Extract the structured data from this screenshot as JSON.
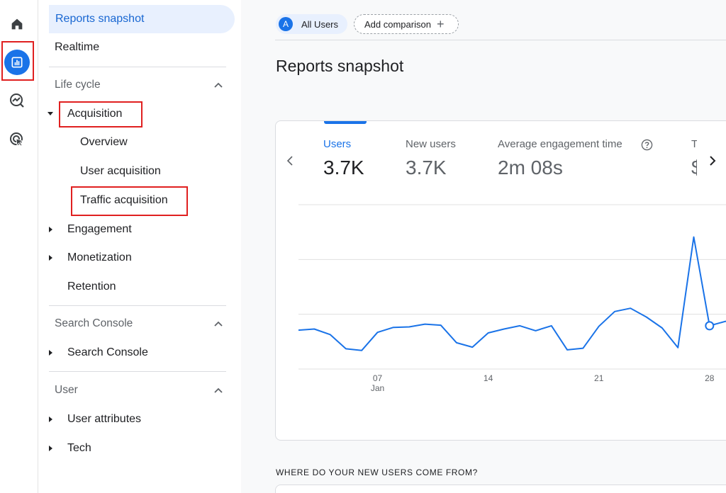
{
  "nav": {
    "selected": "Reports snapshot",
    "realtime": "Realtime",
    "sections": [
      {
        "title": "Life cycle",
        "items": [
          {
            "label": "Acquisition",
            "expanded": true,
            "children": [
              "Overview",
              "User acquisition",
              "Traffic acquisition"
            ]
          },
          {
            "label": "Engagement"
          },
          {
            "label": "Monetization"
          },
          {
            "label": "Retention"
          }
        ]
      },
      {
        "title": "Search Console",
        "items": [
          {
            "label": "Search Console"
          }
        ]
      },
      {
        "title": "User",
        "items": [
          {
            "label": "User attributes"
          },
          {
            "label": "Tech"
          }
        ]
      }
    ]
  },
  "main": {
    "chips": {
      "all_users_avatar": "A",
      "all_users": "All Users",
      "add_comparison": "Add comparison"
    },
    "page_title": "Reports snapshot",
    "metrics": [
      {
        "label": "Users",
        "value": "3.7K"
      },
      {
        "label": "New users",
        "value": "3.7K"
      },
      {
        "label": "Average engagement time",
        "value": "2m 08s"
      },
      {
        "label": "T",
        "value": "$"
      }
    ],
    "section_caption": "WHERE DO YOUR NEW USERS COME FROM?"
  },
  "chart_data": {
    "type": "line",
    "series": [
      {
        "x": [
          "2",
          "3",
          "4",
          "5",
          "6",
          "7",
          "8",
          "9",
          "10",
          "11",
          "12",
          "13",
          "14",
          "15",
          "16",
          "17",
          "18",
          "19",
          "20",
          "21",
          "22",
          "23",
          "24",
          "25",
          "26",
          "27",
          "28",
          "29",
          "30"
        ],
        "values": [
          71,
          73,
          63,
          37,
          34,
          67,
          76,
          77,
          82,
          80,
          48,
          40,
          66,
          73,
          79,
          70,
          79,
          35,
          38,
          78,
          105,
          111,
          95,
          75,
          39,
          241,
          79,
          87,
          90
        ]
      }
    ],
    "x_tick_labels": [
      {
        "day": "07",
        "month": "Jan"
      },
      {
        "day": "14"
      },
      {
        "day": "21"
      },
      {
        "day": "28"
      }
    ],
    "ylim": [
      0,
      300
    ],
    "grid": true,
    "highlight_x": "28",
    "colors": {
      "line": "#1a73e8",
      "grid": "#e0e0e0"
    }
  }
}
